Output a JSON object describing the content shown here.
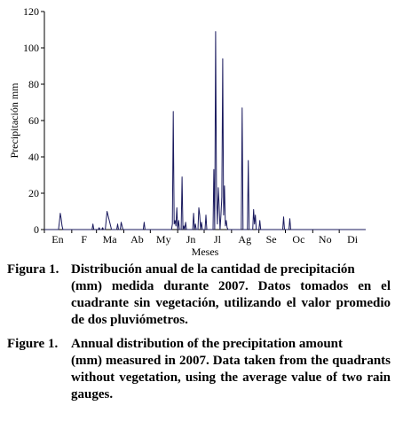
{
  "chart_data": {
    "type": "line",
    "title": "",
    "xlabel": "Meses",
    "ylabel": "Precipitación mm",
    "xlim": [
      1,
      365
    ],
    "ylim": [
      0,
      120
    ],
    "yticks": [
      0,
      20,
      40,
      60,
      80,
      100,
      120
    ],
    "month_labels": [
      "En",
      "F",
      "Ma",
      "Ab",
      "My",
      "Jn",
      "Jl",
      "Ag",
      "Se",
      "Oc",
      "No",
      "Di"
    ],
    "line_color": "#1a1a5e",
    "grid": false,
    "series": [
      {
        "values": [
          [
            1,
            0
          ],
          [
            17,
            0
          ],
          [
            18,
            4
          ],
          [
            19,
            9
          ],
          [
            20,
            6
          ],
          [
            21,
            2
          ],
          [
            22,
            0
          ],
          [
            40,
            0
          ],
          [
            55,
            0
          ],
          [
            56,
            3
          ],
          [
            57,
            0
          ],
          [
            62,
            0
          ],
          [
            63,
            1
          ],
          [
            64,
            0
          ],
          [
            66,
            0
          ],
          [
            67,
            1
          ],
          [
            68,
            0
          ],
          [
            70,
            0
          ],
          [
            71,
            5
          ],
          [
            72,
            10
          ],
          [
            73,
            8
          ],
          [
            74,
            6
          ],
          [
            75,
            4
          ],
          [
            76,
            2
          ],
          [
            77,
            0
          ],
          [
            83,
            0
          ],
          [
            84,
            3
          ],
          [
            85,
            0
          ],
          [
            87,
            0
          ],
          [
            88,
            4
          ],
          [
            89,
            2
          ],
          [
            90,
            0
          ],
          [
            110,
            0
          ],
          [
            113,
            0
          ],
          [
            114,
            4
          ],
          [
            115,
            0
          ],
          [
            145,
            0
          ],
          [
            146,
            3
          ],
          [
            147,
            65
          ],
          [
            148,
            3
          ],
          [
            149,
            5
          ],
          [
            150,
            2
          ],
          [
            151,
            12
          ],
          [
            152,
            0
          ],
          [
            153,
            5
          ],
          [
            154,
            0
          ],
          [
            156,
            0
          ],
          [
            157,
            29
          ],
          [
            158,
            0
          ],
          [
            159,
            2
          ],
          [
            160,
            0
          ],
          [
            161,
            4
          ],
          [
            162,
            0
          ],
          [
            169,
            0
          ],
          [
            170,
            9
          ],
          [
            171,
            0
          ],
          [
            172,
            3
          ],
          [
            173,
            0
          ],
          [
            175,
            0
          ],
          [
            176,
            12
          ],
          [
            177,
            8
          ],
          [
            178,
            0
          ],
          [
            179,
            4
          ],
          [
            180,
            0
          ],
          [
            183,
            0
          ],
          [
            184,
            8
          ],
          [
            185,
            0
          ],
          [
            192,
            0
          ],
          [
            193,
            33
          ],
          [
            194,
            0
          ],
          [
            195,
            109
          ],
          [
            196,
            20
          ],
          [
            197,
            3
          ],
          [
            198,
            23
          ],
          [
            199,
            13
          ],
          [
            200,
            0
          ],
          [
            201,
            8
          ],
          [
            202,
            18
          ],
          [
            203,
            94
          ],
          [
            204,
            8
          ],
          [
            205,
            24
          ],
          [
            206,
            2
          ],
          [
            207,
            5
          ],
          [
            208,
            1
          ],
          [
            209,
            0
          ],
          [
            224,
            0
          ],
          [
            225,
            67
          ],
          [
            226,
            0
          ],
          [
            231,
            0
          ],
          [
            232,
            38
          ],
          [
            233,
            0
          ],
          [
            237,
            0
          ],
          [
            238,
            11
          ],
          [
            239,
            3
          ],
          [
            240,
            8
          ],
          [
            241,
            0
          ],
          [
            244,
            0
          ],
          [
            245,
            5
          ],
          [
            246,
            0
          ],
          [
            271,
            0
          ],
          [
            272,
            7
          ],
          [
            273,
            0
          ],
          [
            278,
            0
          ],
          [
            279,
            6
          ],
          [
            280,
            0
          ],
          [
            365,
            0
          ]
        ]
      }
    ]
  },
  "caption_es": {
    "label": "Figura 1.",
    "first": "Distribución anual de la cantidad de precipitación",
    "rest": "(mm) medida durante 2007. Datos tomados en el cuadrante sin vegetación, utilizando el valor promedio de dos pluviómetros."
  },
  "caption_en": {
    "label": "Figure 1.",
    "first": "Annual distribution of the precipitation amount",
    "rest": "(mm) measured in 2007. Data taken from the quadrants without vegetation, using the average value of two rain gauges."
  }
}
